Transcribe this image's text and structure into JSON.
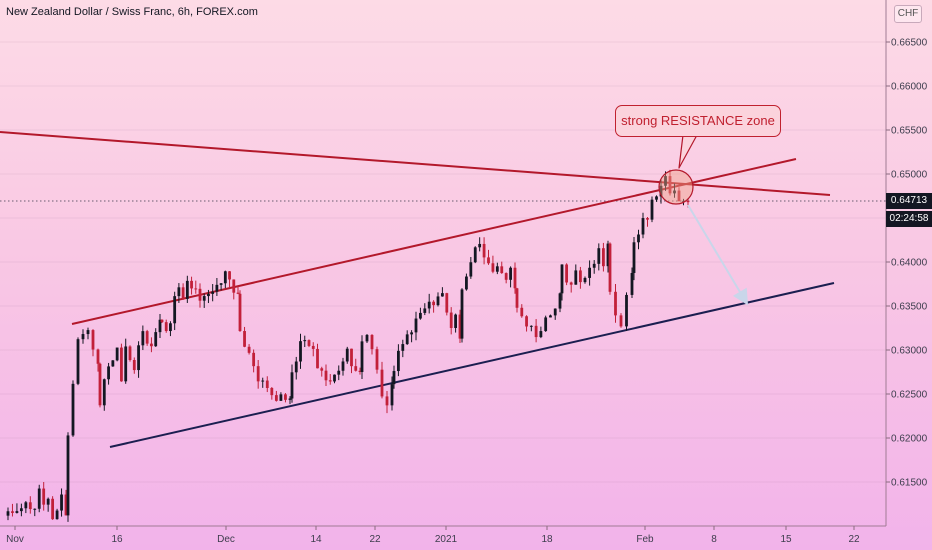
{
  "header": {
    "title": "New Zealand Dollar / Swiss Franc, 6h, FOREX.com",
    "currency": "CHF"
  },
  "annotation": {
    "text": "strong RESISTANCE zone"
  },
  "price_axis": {
    "current_price": "0.64713",
    "countdown": "02:24:58",
    "ticks": [
      "0.66500",
      "0.66000",
      "0.65500",
      "0.65000",
      "0.64500",
      "0.64000",
      "0.63500",
      "0.63000",
      "0.62500",
      "0.62000",
      "0.61500"
    ]
  },
  "time_axis": {
    "ticks": [
      "Nov",
      "16",
      "Dec",
      "14",
      "22",
      "2021",
      "18",
      "Feb",
      "8",
      "15",
      "22"
    ]
  },
  "colors": {
    "bull": "#131722",
    "bear": "#c2203a",
    "resistance": "#b3182b",
    "support": "#1b1e50",
    "arrow": "#c9d6ea",
    "circle": "#f0a285"
  },
  "chart_data": {
    "type": "candlestick",
    "title": "New Zealand Dollar / Swiss Franc, 6h, FOREX.com",
    "ylim": [
      0.61,
      0.669
    ],
    "y_ticks": [
      0.665,
      0.66,
      0.655,
      0.65,
      0.645,
      0.64,
      0.635,
      0.63,
      0.625,
      0.62,
      0.615
    ],
    "x_labels": [
      "Nov",
      "16",
      "Dec",
      "14",
      "22",
      "2021",
      "18",
      "Feb",
      "8",
      "15",
      "22"
    ],
    "path": [
      [
        0.6115,
        0.612,
        0.611,
        0.6128,
        0.6108,
        0.614,
        0.6125,
        0.6112,
        0.613,
        0.612
      ],
      [
        0.6205,
        0.628,
        0.626,
        0.632,
        0.63,
        0.633,
        0.6315,
        0.63,
        0.629,
        0.628
      ],
      [
        0.6245,
        0.627,
        0.629,
        0.63,
        0.627,
        0.631,
        0.628,
        0.63,
        0.632,
        0.629,
        0.631,
        0.633
      ],
      [
        0.634,
        0.632,
        0.635,
        0.6375,
        0.636,
        0.638,
        0.6365,
        0.6355,
        0.637,
        0.636,
        0.6375,
        0.638,
        0.6385,
        0.637,
        0.636
      ],
      [
        0.632,
        0.63,
        0.629,
        0.627,
        0.626,
        0.625,
        0.6245,
        0.6255,
        0.624
      ],
      [
        0.628,
        0.63,
        0.631,
        0.63,
        0.6285,
        0.6275,
        0.626,
        0.627,
        0.629,
        0.63,
        0.6285,
        0.627
      ],
      [
        0.6305,
        0.632,
        0.631,
        0.629,
        0.6265,
        0.6245,
        0.624,
        0.6255
      ],
      [
        0.628,
        0.63,
        0.632,
        0.6305,
        0.633,
        0.635,
        0.634,
        0.636,
        0.6355,
        0.6365,
        0.6355,
        0.633,
        0.6345,
        0.632
      ],
      [
        0.636,
        0.639,
        0.64,
        0.642,
        0.641,
        0.6395,
        0.6385,
        0.6405,
        0.639,
        0.638,
        0.639,
        0.637
      ],
      [
        0.634,
        0.633,
        0.632,
        0.6315,
        0.633,
        0.6345,
        0.636
      ],
      [
        0.639,
        0.637,
        0.638,
        0.6395,
        0.638,
        0.639,
        0.64,
        0.6395,
        0.641,
        0.64,
        0.642
      ],
      [
        0.637,
        0.636,
        0.633,
        0.6325,
        0.635,
        0.637,
        0.638
      ],
      [
        0.6415,
        0.644,
        0.645,
        0.646,
        0.6475,
        0.649,
        0.6495,
        0.648,
        0.647,
        0.6475,
        0.6466
      ]
    ],
    "path_x_ranges": [
      [
        8,
        66
      ],
      [
        68,
        98
      ],
      [
        100,
        160
      ],
      [
        162,
        238
      ],
      [
        240,
        290
      ],
      [
        292,
        360
      ],
      [
        362,
        392
      ],
      [
        394,
        460
      ],
      [
        462,
        515
      ],
      [
        517,
        560
      ],
      [
        562,
        608
      ],
      [
        610,
        632
      ],
      [
        634,
        688
      ]
    ],
    "drawings": [
      {
        "name": "descending-resistance-line",
        "type": "trendline",
        "points": [
          [
            0,
            132
          ],
          [
            830,
            195
          ]
        ]
      },
      {
        "name": "rising-resistance-line",
        "type": "trendline",
        "points": [
          [
            72,
            324
          ],
          [
            796,
            159
          ]
        ]
      },
      {
        "name": "rising-support-line",
        "type": "trendline",
        "points": [
          [
            110,
            447
          ],
          [
            834,
            283
          ]
        ]
      },
      {
        "name": "projection-arrow",
        "type": "arrow",
        "points": [
          [
            688,
            205
          ],
          [
            746,
            302
          ]
        ]
      },
      {
        "name": "resistance-zone-circle",
        "type": "circle",
        "center": [
          676,
          187
        ],
        "r": 17
      }
    ]
  }
}
